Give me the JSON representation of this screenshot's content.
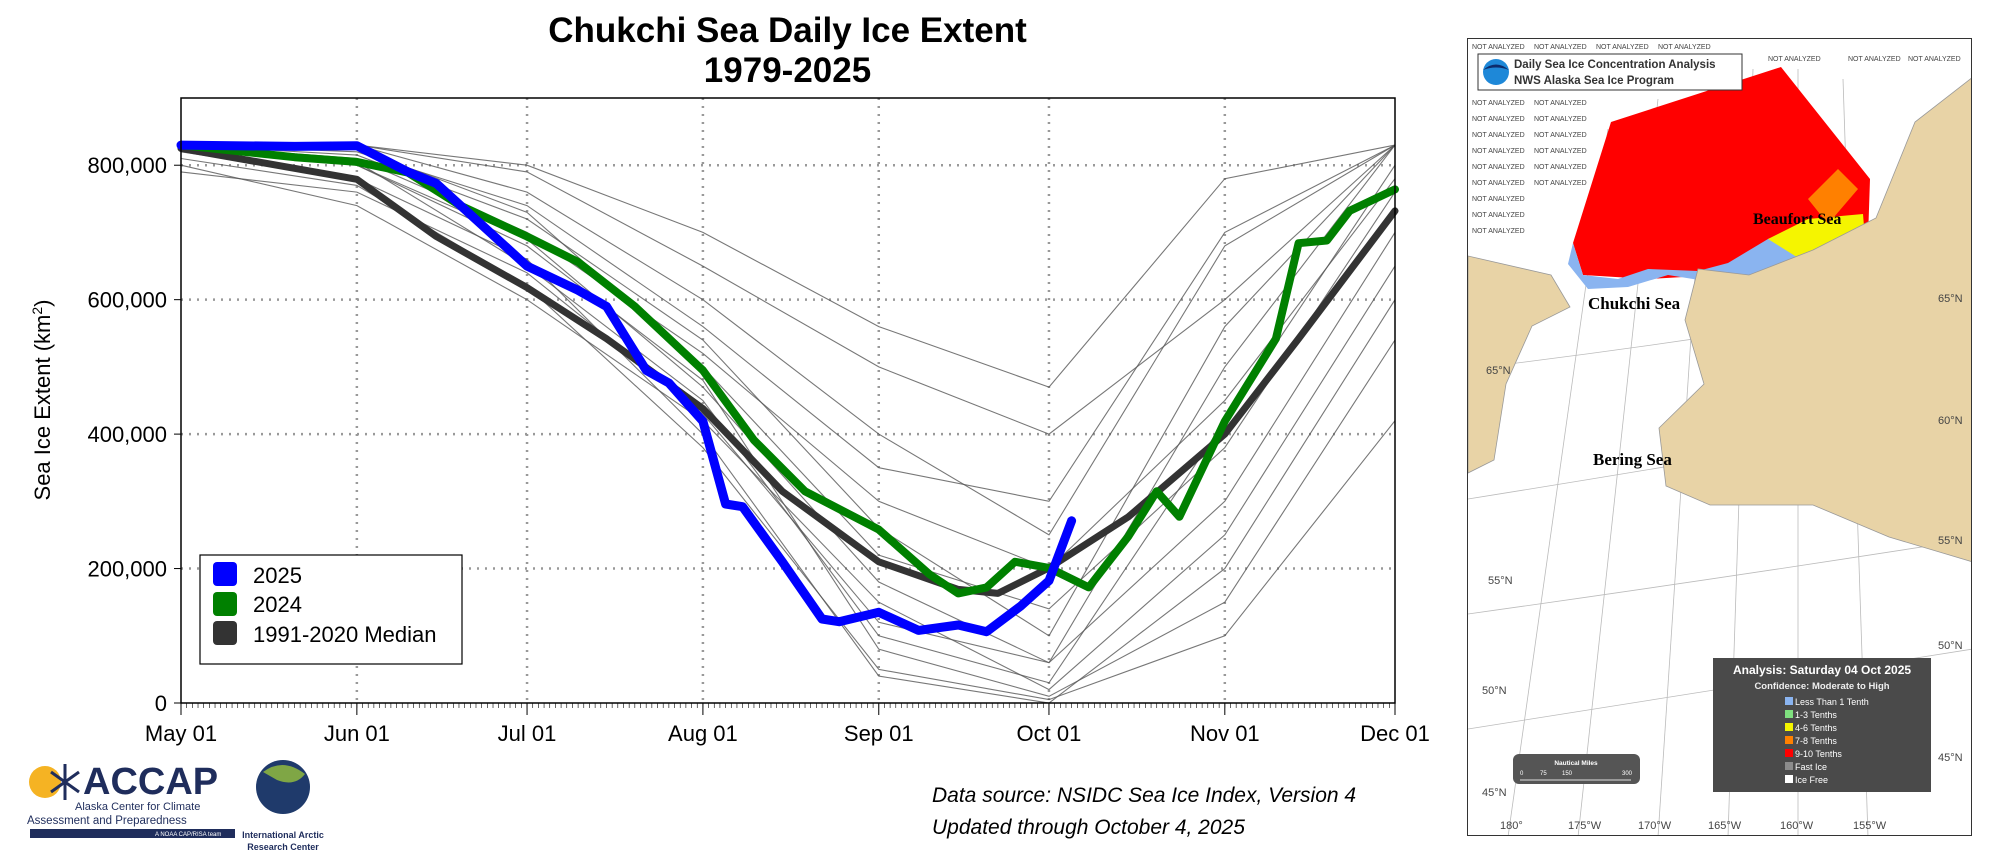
{
  "chart_data": {
    "type": "line",
    "title": "Chukchi Sea Daily Ice Extent",
    "subtitle": "1979-2025",
    "xlabel": "",
    "ylabel": "Sea Ice Extent (km²)",
    "ylabel_main": "Sea Ice Extent (km",
    "ylabel_sup": "2",
    "ylabel_close": ")",
    "ylim": [
      0,
      900000
    ],
    "yticks": [
      0,
      200000,
      400000,
      600000,
      800000
    ],
    "ytick_labels": [
      "0",
      "200,000",
      "400,000",
      "600,000",
      "800,000"
    ],
    "xticks_day": [
      0,
      31,
      61,
      92,
      123,
      153,
      184,
      214
    ],
    "xtick_labels": [
      "May 01",
      "Jun 01",
      "Jul 01",
      "Aug 01",
      "Sep 01",
      "Oct 01",
      "Nov 01",
      "Dec 01"
    ],
    "x_unit": "days since May 01",
    "grid": true,
    "legend_position": "bottom-left",
    "series": [
      {
        "name": "2025",
        "color": "#0000ff",
        "days": [
          0,
          20,
          31,
          40,
          45,
          61,
          70,
          75,
          82,
          86,
          92,
          96,
          99,
          106,
          113,
          116,
          123,
          130,
          137,
          142,
          148,
          153,
          157
        ],
        "values": [
          830000,
          828000,
          829000,
          790000,
          773000,
          650000,
          614000,
          590000,
          495000,
          476000,
          419000,
          296000,
          292000,
          210000,
          125000,
          121000,
          135000,
          108000,
          116000,
          106000,
          144000,
          182000,
          271000
        ]
      },
      {
        "name": "2024",
        "color": "#008000",
        "days": [
          0,
          20,
          31,
          40,
          49,
          61,
          70,
          80,
          92,
          101,
          110,
          123,
          132,
          137,
          142,
          147,
          153,
          160,
          167,
          172,
          176,
          184,
          193,
          197,
          202,
          206,
          214
        ],
        "values": [
          830000,
          812000,
          805000,
          789000,
          741000,
          694000,
          656000,
          590000,
          495000,
          391000,
          315000,
          258000,
          191000,
          163000,
          172000,
          210000,
          201000,
          172000,
          248000,
          315000,
          277000,
          419000,
          542000,
          684000,
          688000,
          732000,
          764000
        ]
      },
      {
        "name": "1991-2020 Median",
        "color": "#333333",
        "days": [
          0,
          31,
          45,
          61,
          75,
          92,
          106,
          123,
          137,
          144,
          153,
          167,
          184,
          197,
          214
        ],
        "values": [
          825000,
          779000,
          694000,
          618000,
          542000,
          438000,
          315000,
          210000,
          169000,
          163000,
          201000,
          277000,
          400000,
          542000,
          732000
        ]
      }
    ],
    "other_years": [
      {
        "days": [
          0,
          31,
          61,
          92,
          123,
          153,
          184,
          214
        ],
        "values": [
          830000,
          810000,
          700000,
          520000,
          300000,
          200000,
          450000,
          780000
        ]
      },
      {
        "days": [
          0,
          31,
          61,
          92,
          123,
          153,
          184,
          214
        ],
        "values": [
          800000,
          740000,
          600000,
          420000,
          150000,
          20000,
          250000,
          650000
        ]
      },
      {
        "days": [
          0,
          31,
          61,
          92,
          123,
          153,
          184,
          214
        ],
        "values": [
          830000,
          830000,
          790000,
          650000,
          500000,
          400000,
          600000,
          830000
        ]
      },
      {
        "days": [
          0,
          31,
          61,
          92,
          123,
          153,
          184,
          214
        ],
        "values": [
          830000,
          820000,
          740000,
          560000,
          350000,
          300000,
          700000,
          830000
        ]
      },
      {
        "days": [
          0,
          31,
          61,
          92,
          123,
          153,
          184,
          214
        ],
        "values": [
          790000,
          760000,
          640000,
          430000,
          120000,
          60000,
          300000,
          700000
        ]
      },
      {
        "days": [
          0,
          31,
          61,
          92,
          123,
          153,
          184,
          214
        ],
        "values": [
          830000,
          800000,
          680000,
          480000,
          80000,
          10000,
          150000,
          540000
        ]
      },
      {
        "days": [
          0,
          31,
          61,
          92,
          123,
          153,
          184,
          214
        ],
        "values": [
          830000,
          830000,
          800000,
          700000,
          560000,
          470000,
          780000,
          830000
        ]
      },
      {
        "days": [
          0,
          31,
          61,
          92,
          123,
          153,
          184,
          214
        ],
        "values": [
          820000,
          780000,
          660000,
          400000,
          40000,
          0,
          200000,
          600000
        ]
      },
      {
        "days": [
          0,
          31,
          61,
          92,
          123,
          153,
          184,
          214
        ],
        "values": [
          830000,
          815000,
          720000,
          540000,
          260000,
          100000,
          560000,
          830000
        ]
      },
      {
        "days": [
          0,
          31,
          61,
          92,
          123,
          153,
          184,
          214
        ],
        "values": [
          830000,
          805000,
          650000,
          450000,
          100000,
          30000,
          420000,
          800000
        ]
      },
      {
        "days": [
          0,
          31,
          61,
          92,
          123,
          153,
          184,
          214
        ],
        "values": [
          830000,
          830000,
          760000,
          600000,
          400000,
          250000,
          680000,
          830000
        ]
      },
      {
        "days": [
          0,
          31,
          61,
          92,
          123,
          153,
          184,
          214
        ],
        "values": [
          810000,
          770000,
          620000,
          380000,
          50000,
          5000,
          100000,
          420000
        ]
      },
      {
        "days": [
          0,
          31,
          61,
          92,
          123,
          153,
          184,
          214
        ],
        "values": [
          830000,
          825000,
          730000,
          500000,
          220000,
          140000,
          380000,
          760000
        ]
      },
      {
        "days": [
          0,
          31,
          61,
          92,
          123,
          153,
          184,
          214
        ],
        "values": [
          830000,
          800000,
          690000,
          470000,
          180000,
          60000,
          500000,
          830000
        ]
      }
    ]
  },
  "source": {
    "line1": "Data source: NSIDC Sea Ice Index, Version 4",
    "line2": "Updated through October 4, 2025"
  },
  "logos": {
    "accap": "ACCAP",
    "accap_line1": "Alaska Center for Climate",
    "accap_line2": "Assessment and Preparedness",
    "accap_tag": "A NOAA CAP/RISA team",
    "iarc_line1": "International Arctic",
    "iarc_line2": "Research Center"
  },
  "map": {
    "header_line1": "Daily Sea Ice Concentration Analysis",
    "header_line2": "NWS Alaska Sea Ice Program",
    "not_analyzed": "NOT ANALYZED",
    "seas": {
      "chukchi": "Chukchi Sea",
      "bering": "Bering Sea",
      "beaufort": "Beaufort Sea"
    },
    "lat_left": [
      "65°N",
      "55°N",
      "50°N",
      "45°N"
    ],
    "lat_right": [
      "65°N",
      "60°N",
      "55°N",
      "50°N",
      "45°N"
    ],
    "lon": [
      "180°",
      "175°W",
      "170°W",
      "165°W",
      "160°W",
      "155°W"
    ],
    "analysis": "Analysis: Saturday 04 Oct 2025",
    "confidence": "Confidence: Moderate to High",
    "legend": [
      {
        "label": "Less Than 1 Tenth",
        "color": "#8ab4f0"
      },
      {
        "label": "1-3 Tenths",
        "color": "#7fe07f"
      },
      {
        "label": "4-6 Tenths",
        "color": "#f5f500"
      },
      {
        "label": "7-8 Tenths",
        "color": "#ff8000"
      },
      {
        "label": "9-10 Tenths",
        "color": "#ff0000"
      },
      {
        "label": "Fast Ice",
        "color": "#8c8c8c"
      },
      {
        "label": "Ice Free",
        "color": "#ffffff"
      }
    ],
    "scale_title": "Nautical Miles",
    "scale_ticks": [
      "0",
      "75",
      "150",
      "300"
    ],
    "land_color": "#e8d3a6"
  }
}
